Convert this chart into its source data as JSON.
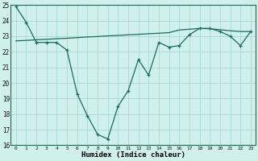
{
  "xlabel": "Humidex (Indice chaleur)",
  "bg_color": "#cff0eb",
  "line_color": "#1a6b5a",
  "grid_color": "#a8d8d0",
  "xlim": [
    -0.5,
    23.5
  ],
  "ylim": [
    16,
    25
  ],
  "yticks": [
    16,
    17,
    18,
    19,
    20,
    21,
    22,
    23,
    24,
    25
  ],
  "xticks": [
    0,
    1,
    2,
    3,
    4,
    5,
    6,
    7,
    8,
    9,
    10,
    11,
    12,
    13,
    14,
    15,
    16,
    17,
    18,
    19,
    20,
    21,
    22,
    23
  ],
  "data_y": [
    24.9,
    23.9,
    22.6,
    22.6,
    22.6,
    22.1,
    19.3,
    17.9,
    16.7,
    16.4,
    18.5,
    19.5,
    21.5,
    20.5,
    22.6,
    22.3,
    22.4,
    23.1,
    23.5,
    23.5,
    23.3,
    23.0,
    22.4,
    23.3
  ],
  "trend_y": [
    22.7,
    22.73,
    22.77,
    22.8,
    22.84,
    22.87,
    22.91,
    22.95,
    22.98,
    23.02,
    23.05,
    23.09,
    23.12,
    23.16,
    23.19,
    23.23,
    23.4,
    23.45,
    23.5,
    23.48,
    23.42,
    23.35,
    23.3,
    23.3
  ]
}
